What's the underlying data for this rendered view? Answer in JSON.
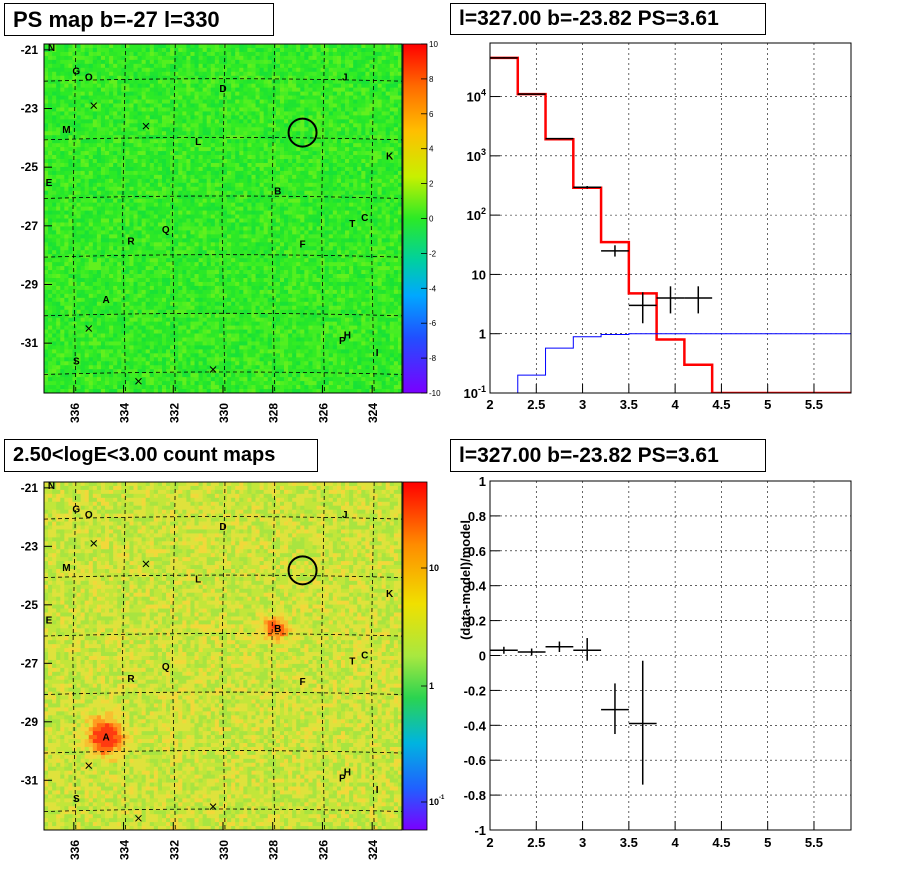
{
  "titles": {
    "ps_map": "PS map b=-27 l=330",
    "spectrum": "l=327.00 b=-23.82 PS=3.61",
    "count_map": "2.50<logE<3.00 count maps",
    "residual": "l=327.00 b=-23.82 PS=3.61"
  },
  "colors": {
    "data": "#000000",
    "model": "#ff0000",
    "background_model": "#0000ff",
    "map_base_ps": "#2bea26",
    "map_base_counts": "#c8e83a"
  },
  "chart_data": [
    {
      "type": "heatmap",
      "name": "ps_map",
      "title": "PS map b=-27 l=330",
      "x_ticks": [
        "336",
        "334",
        "332",
        "330",
        "328",
        "326",
        "324"
      ],
      "y_ticks": [
        "-21",
        "-23",
        "-25",
        "-27",
        "-29",
        "-31"
      ],
      "xlim": [
        337.2,
        322.8
      ],
      "ylim": [
        -32.7,
        -20.8
      ],
      "colorbar": {
        "min": -10,
        "max": 10,
        "ticks": [
          "10",
          "8",
          "6",
          "4",
          "2",
          "0",
          "-2",
          "-4",
          "-6",
          "-8",
          "-10"
        ]
      },
      "sources": [
        {
          "label": "N",
          "l": 336.9,
          "b": -20.9
        },
        {
          "label": "G",
          "l": 335.9,
          "b": -21.7
        },
        {
          "label": "O",
          "l": 335.4,
          "b": -21.9
        },
        {
          "label": "J",
          "l": 325.1,
          "b": -21.9
        },
        {
          "label": "D",
          "l": 330.0,
          "b": -22.3
        },
        {
          "label": "M",
          "l": 336.3,
          "b": -23.7
        },
        {
          "label": "L",
          "l": 331.0,
          "b": -24.1
        },
        {
          "label": "K",
          "l": 323.3,
          "b": -24.6
        },
        {
          "label": "E",
          "l": 337.0,
          "b": -25.5
        },
        {
          "label": "B",
          "l": 327.8,
          "b": -25.8
        },
        {
          "label": "C",
          "l": 324.3,
          "b": -26.7
        },
        {
          "label": "T",
          "l": 324.8,
          "b": -26.9
        },
        {
          "label": "Q",
          "l": 332.3,
          "b": -27.1
        },
        {
          "label": "R",
          "l": 333.7,
          "b": -27.5
        },
        {
          "label": "F",
          "l": 326.8,
          "b": -27.6
        },
        {
          "label": "A",
          "l": 334.7,
          "b": -29.5
        },
        {
          "label": "H",
          "l": 325.0,
          "b": -30.7
        },
        {
          "label": "P",
          "l": 325.2,
          "b": -30.9
        },
        {
          "label": "I",
          "l": 323.8,
          "b": -31.3
        },
        {
          "label": "S",
          "l": 335.9,
          "b": -31.6
        }
      ],
      "crosses": [
        {
          "l": 335.2,
          "b": -22.9
        },
        {
          "l": 333.1,
          "b": -23.6
        },
        {
          "l": 335.4,
          "b": -30.5
        },
        {
          "l": 333.4,
          "b": -32.3
        },
        {
          "l": 330.4,
          "b": -31.9
        }
      ],
      "circle": {
        "l": 326.8,
        "b": -23.82
      }
    },
    {
      "type": "line",
      "name": "spectrum",
      "title": "l=327.00 b=-23.82 PS=3.61",
      "x_scale": "linear",
      "y_scale": "log",
      "xlim": [
        2.0,
        5.9
      ],
      "ylim": [
        0.1,
        80000
      ],
      "x_ticks": [
        "2",
        "2.5",
        "3",
        "3.5",
        "4",
        "4.5",
        "5",
        "5.5"
      ],
      "y_ticks": [
        "10^-1",
        "1",
        "10",
        "10^2",
        "10^3",
        "10^4"
      ],
      "series": [
        {
          "type": "step",
          "color": "#ff0000",
          "edges": [
            2.0,
            2.3,
            2.6,
            2.9,
            3.2,
            3.5,
            3.8,
            4.1,
            4.4,
            4.7,
            5.0,
            5.3,
            5.6,
            5.9
          ],
          "values": [
            45000,
            11000,
            1900,
            290,
            35,
            4.8,
            0.8,
            0.3,
            0.1,
            0.1,
            0.1,
            0.1,
            0.1
          ]
        },
        {
          "type": "step",
          "color": "#0000ff",
          "edges": [
            2.0,
            2.3,
            2.6,
            2.9,
            3.2,
            3.5,
            3.8,
            4.1,
            4.4,
            4.7,
            5.0,
            5.3,
            5.6,
            5.9
          ],
          "values": [
            0.06,
            0.2,
            0.57,
            0.89,
            0.97,
            1.0,
            1.0,
            1.0,
            1.0,
            1.0,
            1.0,
            1.0,
            1.0
          ]
        },
        {
          "type": "points",
          "color": "#000000",
          "points": [
            {
              "x": 2.15,
              "y": 45000,
              "xerr": 0.15,
              "ylo": 44000,
              "yhi": 46000
            },
            {
              "x": 2.45,
              "y": 11000,
              "xerr": 0.15,
              "ylo": 10800,
              "yhi": 11200
            },
            {
              "x": 2.75,
              "y": 1950,
              "xerr": 0.15,
              "ylo": 1900,
              "yhi": 2000
            },
            {
              "x": 3.05,
              "y": 295,
              "xerr": 0.15,
              "ylo": 280,
              "yhi": 310
            },
            {
              "x": 3.35,
              "y": 25,
              "xerr": 0.15,
              "ylo": 20,
              "yhi": 31
            },
            {
              "x": 3.65,
              "y": 3,
              "xerr": 0.15,
              "ylo": 1.5,
              "yhi": 5
            },
            {
              "x": 3.95,
              "y": 4,
              "xerr": 0.15,
              "ylo": 2.2,
              "yhi": 6.3
            },
            {
              "x": 4.25,
              "y": 4,
              "xerr": 0.15,
              "ylo": 2.2,
              "yhi": 6.3
            }
          ]
        }
      ]
    },
    {
      "type": "heatmap",
      "name": "count_map",
      "title": "2.50<logE<3.00 count maps",
      "x_ticks": [
        "336",
        "334",
        "332",
        "330",
        "328",
        "326",
        "324"
      ],
      "y_ticks": [
        "-21",
        "-23",
        "-25",
        "-27",
        "-29",
        "-31"
      ],
      "xlim": [
        337.2,
        322.8
      ],
      "ylim": [
        -32.7,
        -20.8
      ],
      "colorbar": {
        "scale": "log",
        "ticks": [
          "10",
          "1",
          "10^-1"
        ]
      },
      "hotspots": [
        {
          "l": 334.7,
          "b": -29.5,
          "strength": 1.0,
          "radius": 0.65
        },
        {
          "l": 327.9,
          "b": -25.8,
          "strength": 0.6,
          "radius": 0.5
        }
      ]
    },
    {
      "type": "scatter",
      "name": "residual",
      "title": "l=327.00 b=-23.82 PS=3.61",
      "ylabel": "(data-model)/model",
      "xlim": [
        2.0,
        5.9
      ],
      "ylim": [
        -1.0,
        1.0
      ],
      "x_ticks": [
        "2",
        "2.5",
        "3",
        "3.5",
        "4",
        "4.5",
        "5",
        "5.5"
      ],
      "y_ticks": [
        "1",
        "0.8",
        "0.6",
        "0.4",
        "0.2",
        "0",
        "-0.2",
        "-0.4",
        "-0.6",
        "-0.8",
        "-1"
      ],
      "points": [
        {
          "x": 2.15,
          "y": 0.03,
          "xerr": 0.15,
          "ylo": 0.01,
          "yhi": 0.05
        },
        {
          "x": 2.45,
          "y": 0.02,
          "xerr": 0.15,
          "ylo": 0.0,
          "yhi": 0.04
        },
        {
          "x": 2.75,
          "y": 0.05,
          "xerr": 0.15,
          "ylo": 0.02,
          "yhi": 0.08
        },
        {
          "x": 3.05,
          "y": 0.03,
          "xerr": 0.15,
          "ylo": -0.03,
          "yhi": 0.1
        },
        {
          "x": 3.35,
          "y": -0.31,
          "xerr": 0.15,
          "ylo": -0.45,
          "yhi": -0.16
        },
        {
          "x": 3.65,
          "y": -0.39,
          "xerr": 0.15,
          "ylo": -0.74,
          "yhi": -0.03
        }
      ]
    }
  ]
}
